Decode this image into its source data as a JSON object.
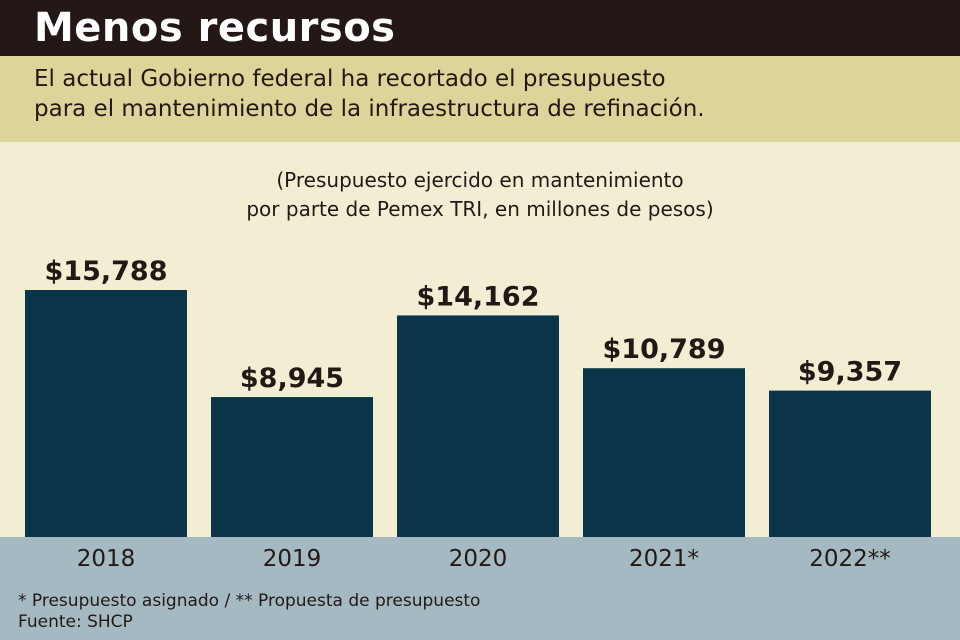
{
  "header": {
    "title": "Menos recursos"
  },
  "subtitle": {
    "line1": "El actual Gobierno federal ha recortado el presupuesto",
    "line2": "para el mantenimiento de la infraestructura de refinación."
  },
  "note": {
    "line1": "(Presupuesto ejercido en mantenimiento",
    "line2": "por parte de Pemex TRI, en millones de pesos)"
  },
  "colors": {
    "header_bg": "#231815",
    "subtitle_bg": "#ddd49a",
    "page_bg": "#f2eed3",
    "bar": "#0a3447",
    "footer_bg": "#a4b9c1"
  },
  "chart_data": {
    "type": "bar",
    "categories": [
      "2018",
      "2019",
      "2020",
      "2021*",
      "2022**"
    ],
    "values": [
      15788,
      8945,
      14162,
      10789,
      9357
    ],
    "value_labels": [
      "$15,788",
      "$8,945",
      "$14,162",
      "$10,789",
      "$9,357"
    ],
    "title": "",
    "xlabel": "",
    "ylabel": "",
    "grid": false,
    "legend": "none"
  },
  "footer": {
    "footnote": "* Presupuesto asignado /   ** Propuesta de presupuesto",
    "source": "Fuente: SHCP"
  }
}
